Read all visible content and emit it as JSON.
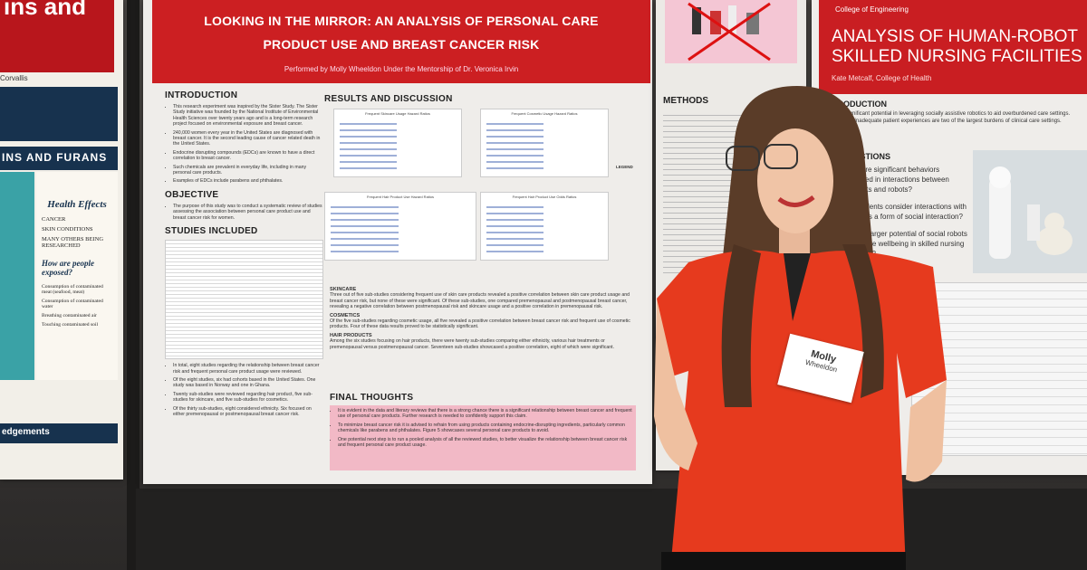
{
  "left_poster": {
    "title_fragment": "ins and",
    "subtitle_fragment": "Corvallis",
    "heading": "INS AND FURANS",
    "health_effects": {
      "title": "Health Effects",
      "items": [
        "CANCER",
        "SKIN CONDITIONS",
        "MANY OTHERS BEING RESEARCHED"
      ]
    },
    "exposure": {
      "title": "How are people exposed?",
      "items": [
        "Consumption of contaminated meat (seafood, meat)",
        "Consumption of contaminated water",
        "Breathing contaminated air",
        "Touching contaminated soil"
      ]
    },
    "acknowledgements": "edgements"
  },
  "main_poster": {
    "title": "LOOKING IN THE MIRROR: AN ANALYSIS OF PERSONAL CARE PRODUCT USE AND BREAST CANCER RISK",
    "byline": "Performed by Molly Wheeldon Under the Mentorship of Dr. Veronica Irvin",
    "introduction": {
      "heading": "INTRODUCTION",
      "bullets": [
        "This research experiment was inspired by the Sister Study. The Sister Study initiative was founded by the National Institute of Environmental Health Sciences over twenty years ago and is a long-term research project focused on environmental exposure and breast cancer.",
        "240,000 women every year in the United States are diagnosed with breast cancer. It is the second leading cause of cancer related death in the United States.",
        "Endocrine disrupting compounds (EDCs) are known to have a direct correlation to breast cancer.",
        "Such chemicals are prevalent in everyday life, including in many personal care products.",
        "Examples of EDCs include parabens and phthalates."
      ]
    },
    "objective": {
      "heading": "OBJECTIVE",
      "bullets": [
        "The purpose of this study was to conduct a systematic review of studies assessing the association between personal care product use and breast cancer risk for women."
      ]
    },
    "studies": {
      "heading": "STUDIES INCLUDED",
      "bullets": [
        "In total, eight studies regarding the relationship between breast cancer risk and frequent personal care product usage were reviewed.",
        "Of the eight studies, six had cohorts based in the United States. One study was based in Norway and one in Ghana.",
        "Twenty sub-studies were reviewed regarding hair product, five sub-studies for skincare, and five sub-studies for cosmetics.",
        "Of the thirty sub-studies, eight considered ethnicity. Six focused on either premenopausal or postmenopausal breast cancer risk."
      ]
    },
    "results": {
      "heading": "RESULTS AND DISCUSSION",
      "figures": [
        "Frequent Skincare Usage Hazard Ratios",
        "Frequent Cosmetic Usage Hazard Ratios",
        "Frequent Hair Product Use Hazard Ratios",
        "Frequent Hair Product Use Odds Ratios"
      ],
      "legend": "LEGEND",
      "sections": [
        {
          "heading": "SKINCARE",
          "text": "Three out of five sub-studies considering frequent use of skin care products revealed a positive correlation between skin care product usage and breast cancer risk, but none of these were significant. Of these sub-studies, one compared premenopausal and postmenopausal breast cancer, revealing a negative correlation between postmenopausal risk and skincare usage and a positive correlation in premenopausal risk."
        },
        {
          "heading": "COSMETICS",
          "text": "Of the five sub-studies regarding cosmetic usage, all five revealed a positive correlation between breast cancer risk and frequent use of cosmetic products. Four of these data results proved to be statistically significant."
        },
        {
          "heading": "HAIR PRODUCTS",
          "text": "Among the six studies focusing on hair products, there were twenty sub-studies comparing either ethnicity, various hair treatments or premenopausal versus postmenopausal cancer. Seventeen sub-studies showcased a positive correlation, eight of which were significant."
        }
      ]
    },
    "final_thoughts": {
      "heading": "FINAL THOUGHTS",
      "bullets": [
        "It is evident in the data and literary reviews that there is a strong chance there is a significant relationship between breast cancer and frequent use of personal care products. Further research is needed to confidently support this claim.",
        "To minimize breast cancer risk it is advised to refrain from using products containing endocrine-disrupting ingredients, particularly common chemicals like parabens and phthalates. Figure 5 showcases several personal care products to avoid.",
        "One potential next step is to run a pooled analysis of all the reviewed studies, to better visualize the relationship between breast cancer risk and frequent personal care product usage."
      ]
    }
  },
  "middle_poster": {
    "heading": "METHODS"
  },
  "right_poster": {
    "college": "College of Engineering",
    "title_line_1": "ANALYSIS OF HUMAN-ROBOT",
    "title_line_2": "SKILLED NURSING FACILITIES",
    "author": "Kate Metcalf, College of Health",
    "introduction": {
      "heading": "INTRODUCTION",
      "text": "There is significant potential in leveraging socially assistive robotics to aid overburdened care settings. Staffing and inadequate patient experiences are two of the largest burdens of clinical care settings."
    },
    "questions": {
      "heading": "QUESTIONS",
      "items": [
        "What are significant behaviors displayed in interactions between residents and robots?",
        "Do residents consider interactions with robots as a form of social interaction?",
        "Is there larger potential of social robots to improve wellbeing in skilled nursing residents?"
      ]
    }
  },
  "name_tag": {
    "first_name": "Molly",
    "last_name": "Wheeldon"
  }
}
